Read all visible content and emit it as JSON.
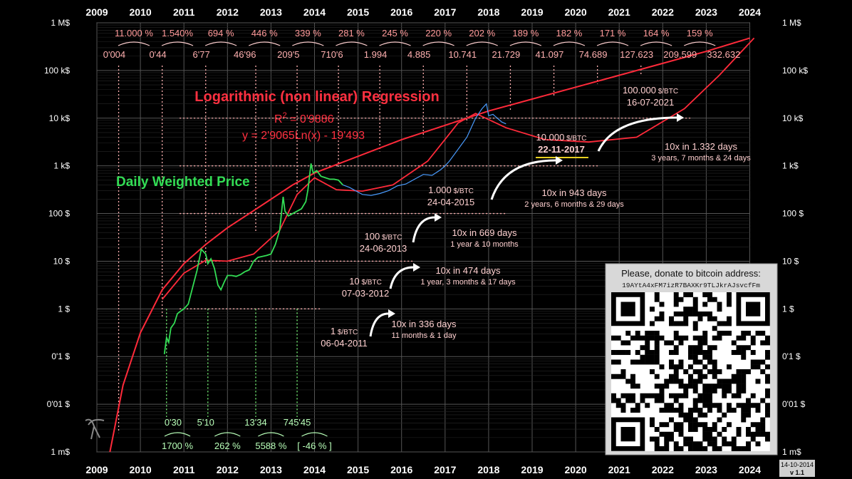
{
  "chart_data": {
    "type": "line",
    "x_years": [
      "2009",
      "2010",
      "2011",
      "2012",
      "2013",
      "2014",
      "2015",
      "2016",
      "2017",
      "2018",
      "2019",
      "2020",
      "2021",
      "2022",
      "2023",
      "2024"
    ],
    "y_ticks": [
      "1 M$",
      "100 k$",
      "10 k$",
      "1 k$",
      "100 $",
      "10 $",
      "1 $",
      "0'1 $",
      "0'01 $",
      "1 m$"
    ],
    "y_log_range": [
      -3,
      6
    ],
    "regression": {
      "title": "Logarithmic (non linear) Regression",
      "r2_prefix": "R",
      "r2_sup": "2",
      "r2_value": " = 0'9886",
      "equation": "y = 2'9065Ln(x) - 19'493",
      "curve_points": [
        [
          2009.3,
          -3
        ],
        [
          2009.6,
          -1.6
        ],
        [
          2010.0,
          -0.5
        ],
        [
          2010.5,
          0.4
        ],
        [
          2011.0,
          0.95
        ],
        [
          2011.5,
          1.35
        ],
        [
          2012.0,
          1.7
        ],
        [
          2012.5,
          2.0
        ],
        [
          2013.0,
          2.3
        ],
        [
          2013.5,
          2.6
        ],
        [
          2014.0,
          2.85
        ],
        [
          2015.0,
          3.2
        ],
        [
          2016.0,
          3.55
        ],
        [
          2017.0,
          3.85
        ],
        [
          2018.0,
          4.15
        ],
        [
          2019.0,
          4.4
        ],
        [
          2020.0,
          4.65
        ],
        [
          2021.0,
          4.9
        ],
        [
          2022.0,
          5.15
        ],
        [
          2023.0,
          5.4
        ],
        [
          2024.0,
          5.68
        ]
      ]
    },
    "forecast_curve": [
      [
        2010.5,
        0.2
      ],
      [
        2011.0,
        0.75
      ],
      [
        2011.5,
        1.02
      ],
      [
        2012.0,
        1.0
      ],
      [
        2012.6,
        1.15
      ],
      [
        2013.2,
        1.65
      ],
      [
        2013.6,
        2.4
      ],
      [
        2014.0,
        2.75
      ],
      [
        2014.5,
        2.5
      ],
      [
        2015.1,
        2.47
      ],
      [
        2015.8,
        2.6
      ],
      [
        2016.6,
        3.1
      ],
      [
        2017.3,
        3.9
      ],
      [
        2017.7,
        4.1
      ],
      [
        2018.4,
        3.8
      ],
      [
        2019.3,
        3.55
      ],
      [
        2020.3,
        3.5
      ],
      [
        2021.4,
        3.6
      ],
      [
        2022.5,
        4.2
      ],
      [
        2023.3,
        4.9
      ],
      [
        2024.1,
        5.68
      ]
    ],
    "price_series": {
      "name": "Daily Weighted Price",
      "points": [
        [
          2010.55,
          -0.95
        ],
        [
          2010.6,
          -0.6
        ],
        [
          2010.65,
          -0.7
        ],
        [
          2010.7,
          -0.4
        ],
        [
          2010.78,
          -0.3
        ],
        [
          2010.85,
          -0.1
        ],
        [
          2010.92,
          -0.05
        ],
        [
          2011.0,
          0.0
        ],
        [
          2011.1,
          0.1
        ],
        [
          2011.2,
          0.45
        ],
        [
          2011.3,
          0.8
        ],
        [
          2011.4,
          1.25
        ],
        [
          2011.45,
          1.2
        ],
        [
          2011.5,
          1.15
        ],
        [
          2011.55,
          0.95
        ],
        [
          2011.62,
          1.05
        ],
        [
          2011.7,
          0.85
        ],
        [
          2011.78,
          0.5
        ],
        [
          2011.85,
          0.4
        ],
        [
          2011.92,
          0.55
        ],
        [
          2012.0,
          0.7
        ],
        [
          2012.1,
          0.7
        ],
        [
          2012.2,
          0.68
        ],
        [
          2012.3,
          0.72
        ],
        [
          2012.4,
          0.78
        ],
        [
          2012.5,
          0.82
        ],
        [
          2012.6,
          1.0
        ],
        [
          2012.7,
          1.08
        ],
        [
          2012.8,
          1.1
        ],
        [
          2012.9,
          1.12
        ],
        [
          2013.0,
          1.15
        ],
        [
          2013.1,
          1.35
        ],
        [
          2013.2,
          1.65
        ],
        [
          2013.28,
          2.35
        ],
        [
          2013.32,
          2.05
        ],
        [
          2013.4,
          1.95
        ],
        [
          2013.5,
          2.0
        ],
        [
          2013.6,
          2.05
        ],
        [
          2013.7,
          2.1
        ],
        [
          2013.8,
          2.25
        ],
        [
          2013.85,
          2.5
        ],
        [
          2013.92,
          3.05
        ],
        [
          2013.97,
          2.85
        ],
        [
          2014.05,
          2.9
        ],
        [
          2014.15,
          2.78
        ],
        [
          2014.25,
          2.75
        ],
        [
          2014.35,
          2.72
        ],
        [
          2014.45,
          2.72
        ],
        [
          2014.55,
          2.7
        ],
        [
          2014.65,
          2.6
        ]
      ],
      "continuation": [
        [
          2014.65,
          2.6
        ],
        [
          2014.8,
          2.55
        ],
        [
          2015.0,
          2.45
        ],
        [
          2015.1,
          2.4
        ],
        [
          2015.3,
          2.38
        ],
        [
          2015.5,
          2.42
        ],
        [
          2015.7,
          2.48
        ],
        [
          2015.9,
          2.58
        ],
        [
          2016.1,
          2.62
        ],
        [
          2016.3,
          2.72
        ],
        [
          2016.5,
          2.82
        ],
        [
          2016.7,
          2.8
        ],
        [
          2016.9,
          2.92
        ],
        [
          2017.0,
          3.0
        ],
        [
          2017.1,
          3.1
        ],
        [
          2017.3,
          3.35
        ],
        [
          2017.5,
          3.6
        ],
        [
          2017.7,
          4.0
        ],
        [
          2017.85,
          4.2
        ],
        [
          2017.95,
          4.3
        ],
        [
          2018.0,
          4.05
        ],
        [
          2018.1,
          4.08
        ],
        [
          2018.2,
          4.0
        ],
        [
          2018.3,
          3.92
        ],
        [
          2018.4,
          3.88
        ]
      ]
    },
    "top_pcts": [
      "11.000 %",
      "1.540%",
      "694 %",
      "446 %",
      "339 %",
      "281 %",
      "245 %",
      "220 %",
      "202 %",
      "189 %",
      "182 %",
      "171 %",
      "164 %",
      "159 %"
    ],
    "top_values": [
      "0'004",
      "0'44",
      "6'77",
      "46'96",
      "209'5",
      "710'6",
      "1.994",
      "4.885",
      "10.741",
      "21.729",
      "41.097",
      "74.689",
      "127.623",
      "209.599",
      "332.632"
    ],
    "bottom_values": [
      "0'30",
      "5'10",
      "13'34",
      "745'45"
    ],
    "bottom_pcts": [
      "1700 %",
      "262 %",
      "5588 %",
      "[ -46 % ]"
    ],
    "milestones": [
      {
        "price": "1",
        "unit": " $/BTC",
        "date": "06-04-2011"
      },
      {
        "price": "10",
        "unit": " $/BTC",
        "date": "07-03-2012"
      },
      {
        "price": "100",
        "unit": " $/BTC",
        "date": "24-06-2013"
      },
      {
        "price": "1.000",
        "unit": " $/BTC",
        "date": "24-04-2015"
      },
      {
        "price": "10.000",
        "unit": " $/BTC",
        "date": "22-11-2017"
      },
      {
        "price": "100.000",
        "unit": " $/BTC",
        "date": "16-07-2021"
      }
    ],
    "gaps": [
      {
        "main": "10x in 336 days",
        "sub": "11 months & 1 day"
      },
      {
        "main": "10x in 474 days",
        "sub": "1 year, 3 months & 17 days"
      },
      {
        "main": "10x in 669 days",
        "sub": "1 year & 10 months"
      },
      {
        "main": "10x in 943 days",
        "sub": "2 years, 6 months & 29 days"
      },
      {
        "main": "10x  in 1.332 days",
        "sub": "3 years, 7 months & 24 days"
      }
    ],
    "colors": {
      "regression": "#ff2a3a",
      "price": "#33dd55",
      "price_later": "#4a9cff",
      "milestone": "#ffb0b0",
      "grid": "#555555"
    }
  },
  "donation": {
    "title": "Please, donate to bitcoin address:",
    "address": "19AYtA4xFM7izR7BAXKr9TLJkrAJsvcfFm"
  },
  "version": {
    "date": "14-10-2014",
    "label": "v 1.1"
  }
}
